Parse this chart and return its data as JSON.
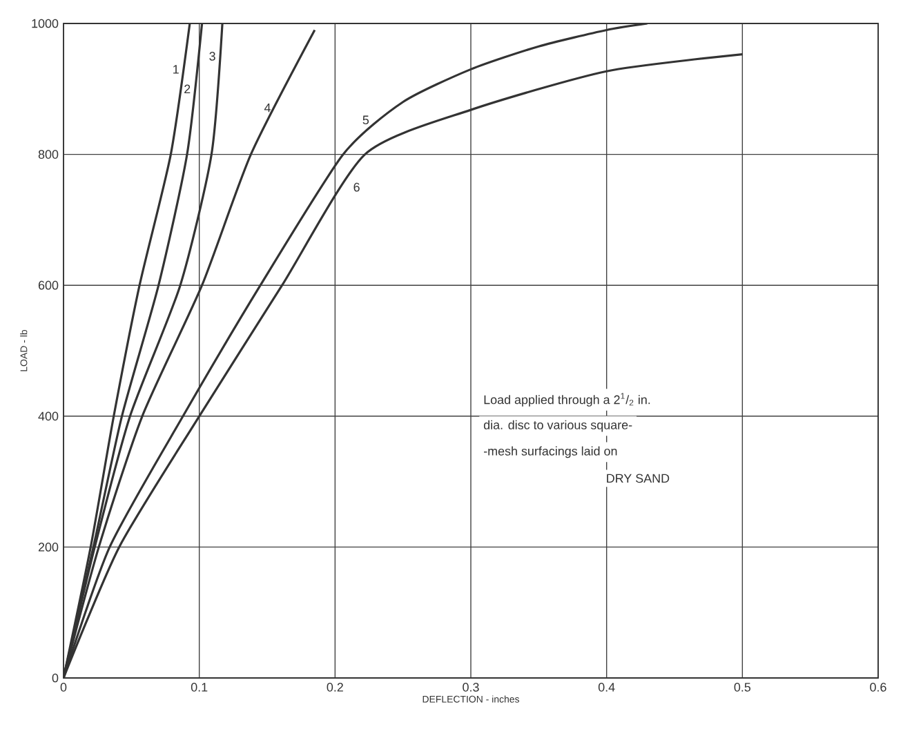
{
  "chart_data": {
    "type": "line",
    "xlabel": "DEFLECTION - inches",
    "ylabel": "LOAD - lb",
    "xlim": [
      0,
      0.6
    ],
    "ylim": [
      0,
      1000
    ],
    "xticks": [
      0,
      0.1,
      0.2,
      0.3,
      0.4,
      0.5,
      0.6
    ],
    "yticks": [
      0,
      200,
      400,
      600,
      800,
      1000
    ],
    "grid": true,
    "legend": false,
    "marker": "none",
    "line_style": "solid",
    "series": [
      {
        "name": "1",
        "color": "#333333",
        "x": [
          0,
          0.02,
          0.037,
          0.056,
          0.079,
          0.093
        ],
        "values": [
          0,
          200,
          400,
          600,
          800,
          1000
        ]
      },
      {
        "name": "2",
        "color": "#333333",
        "x": [
          0,
          0.022,
          0.043,
          0.07,
          0.091,
          0.102
        ],
        "values": [
          0,
          200,
          400,
          600,
          800,
          1000
        ]
      },
      {
        "name": "3",
        "color": "#333333",
        "x": [
          0,
          0.023,
          0.049,
          0.086,
          0.109,
          0.117
        ],
        "values": [
          0,
          200,
          400,
          600,
          800,
          1000
        ]
      },
      {
        "name": "4",
        "color": "#333333",
        "x": [
          0,
          0.026,
          0.058,
          0.102,
          0.138,
          0.185
        ],
        "values": [
          0,
          200,
          400,
          600,
          800,
          990
        ]
      },
      {
        "name": "5",
        "color": "#333333",
        "x": [
          0,
          0.034,
          0.088,
          0.145,
          0.206,
          0.25,
          0.3,
          0.35,
          0.4,
          0.43
        ],
        "values": [
          0,
          200,
          400,
          600,
          800,
          880,
          930,
          965,
          990,
          1000
        ]
      },
      {
        "name": "6",
        "color": "#333333",
        "x": [
          0,
          0.041,
          0.1,
          0.161,
          0.222,
          0.3,
          0.4,
          0.5
        ],
        "values": [
          0,
          200,
          400,
          600,
          800,
          868,
          927,
          953
        ]
      }
    ],
    "annotations": [
      "Load applied through a 2$^{1}$/$_{2}$ in.",
      "dia. disc to various square-",
      "-mesh surfacings laid on",
      "DRY SAND"
    ]
  }
}
